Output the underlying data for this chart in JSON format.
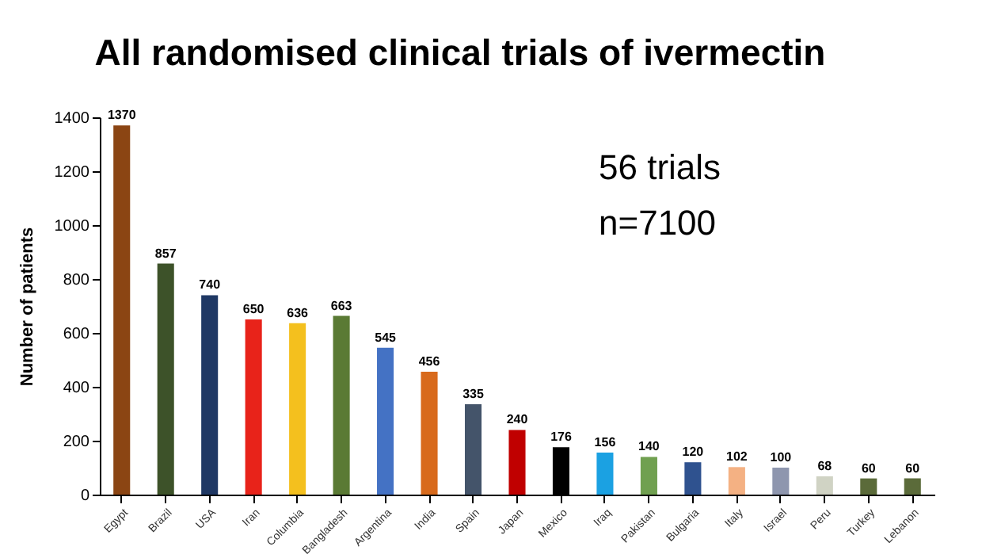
{
  "chart_data": {
    "type": "bar",
    "title": "All randomised clinical trials of ivermectin",
    "ylabel": "Number of patients",
    "categories": [
      "Egypt",
      "Brazil",
      "USA",
      "Iran",
      "Columbia",
      "Bangladesh",
      "Argentina",
      "India",
      "Spain",
      "Japan",
      "Mexico",
      "Iraq",
      "Pakistan",
      "Bulgaria",
      "Italy",
      "Israel",
      "Peru",
      "Turkey",
      "Lebanon"
    ],
    "values": [
      1370,
      857,
      740,
      650,
      636,
      663,
      545,
      456,
      335,
      240,
      176,
      156,
      140,
      120,
      102,
      100,
      68,
      60,
      60
    ],
    "colors": [
      "#8b4513",
      "#3d5229",
      "#1f3864",
      "#e8231a",
      "#f4c01e",
      "#5a7a34",
      "#4472c4",
      "#d86a1c",
      "#44546a",
      "#c00000",
      "#000000",
      "#1ba1e2",
      "#70a050",
      "#2f528f",
      "#f4b183",
      "#8e96ae",
      "#d0d3c4",
      "#5b6b3a",
      "#5b6b3a"
    ],
    "ylim": [
      0,
      1400
    ],
    "yticks": [
      0,
      200,
      400,
      600,
      800,
      1000,
      1200,
      1400
    ],
    "grid": false,
    "data_labels": true,
    "annotations": [
      "56 trials",
      "n=7100"
    ]
  }
}
